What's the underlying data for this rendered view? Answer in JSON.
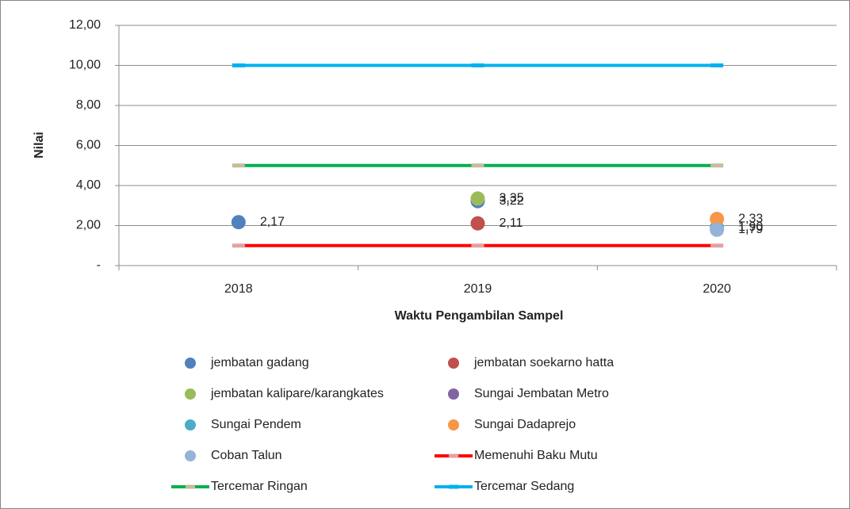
{
  "chart_data": {
    "type": "line",
    "y_label": "Nilai",
    "x_label": "Waktu Pengambilan Sampel",
    "categories": [
      "2018",
      "2019",
      "2020"
    ],
    "ylim": [
      0,
      12
    ],
    "yticks": [
      {
        "value": 0,
        "label": "-"
      },
      {
        "value": 2,
        "label": "2,00"
      },
      {
        "value": 4,
        "label": "4,00"
      },
      {
        "value": 6,
        "label": "6,00"
      },
      {
        "value": 8,
        "label": "8,00"
      },
      {
        "value": 10,
        "label": "10,00"
      },
      {
        "value": 12,
        "label": "12,00"
      }
    ],
    "grid": true,
    "series": [
      {
        "name": "jembatan gadang",
        "color": "#4f81bd",
        "mode": "markers",
        "values": [
          2.17,
          3.22,
          null
        ],
        "value_labels": [
          "2,17",
          "3,22",
          null
        ]
      },
      {
        "name": "jembatan soekarno hatta",
        "color": "#c0504d",
        "mode": "markers",
        "values": [
          null,
          2.11,
          null
        ],
        "value_labels": [
          null,
          "2,11",
          null
        ]
      },
      {
        "name": "jembatan kalipare/karangkates",
        "color": "#9bbb59",
        "mode": "markers",
        "values": [
          null,
          3.35,
          null
        ],
        "value_labels": [
          null,
          "3,35",
          null
        ]
      },
      {
        "name": "Sungai Jembatan Metro",
        "color": "#8064a2",
        "mode": "markers",
        "values": [
          null,
          null,
          null
        ]
      },
      {
        "name": "Sungai Pendem",
        "color": "#4bacc6",
        "mode": "markers",
        "values": [
          null,
          null,
          1.9
        ],
        "value_labels": [
          null,
          null,
          "1,90"
        ]
      },
      {
        "name": "Sungai Dadaprejo",
        "color": "#f79646",
        "mode": "markers",
        "values": [
          null,
          null,
          2.33
        ],
        "value_labels": [
          null,
          null,
          "2,33"
        ]
      },
      {
        "name": "Coban Talun",
        "color": "#95b3d7",
        "mode": "markers",
        "values": [
          null,
          null,
          1.79
        ],
        "value_labels": [
          null,
          null,
          "1,79"
        ]
      },
      {
        "name": "Memenuhi Baku Mutu",
        "color": "#ff0000",
        "marker_color": "#e6a0a0",
        "mode": "lines",
        "values": [
          1,
          1,
          1
        ]
      },
      {
        "name": "Tercemar Ringan",
        "color": "#00b050",
        "marker_color": "#c4bd97",
        "mode": "lines",
        "values": [
          5,
          5,
          5
        ]
      },
      {
        "name": "Tercemar Sedang",
        "color": "#00b0f0",
        "marker_color": "#00b0f0",
        "mode": "lines",
        "values": [
          10,
          10,
          10
        ]
      }
    ]
  }
}
